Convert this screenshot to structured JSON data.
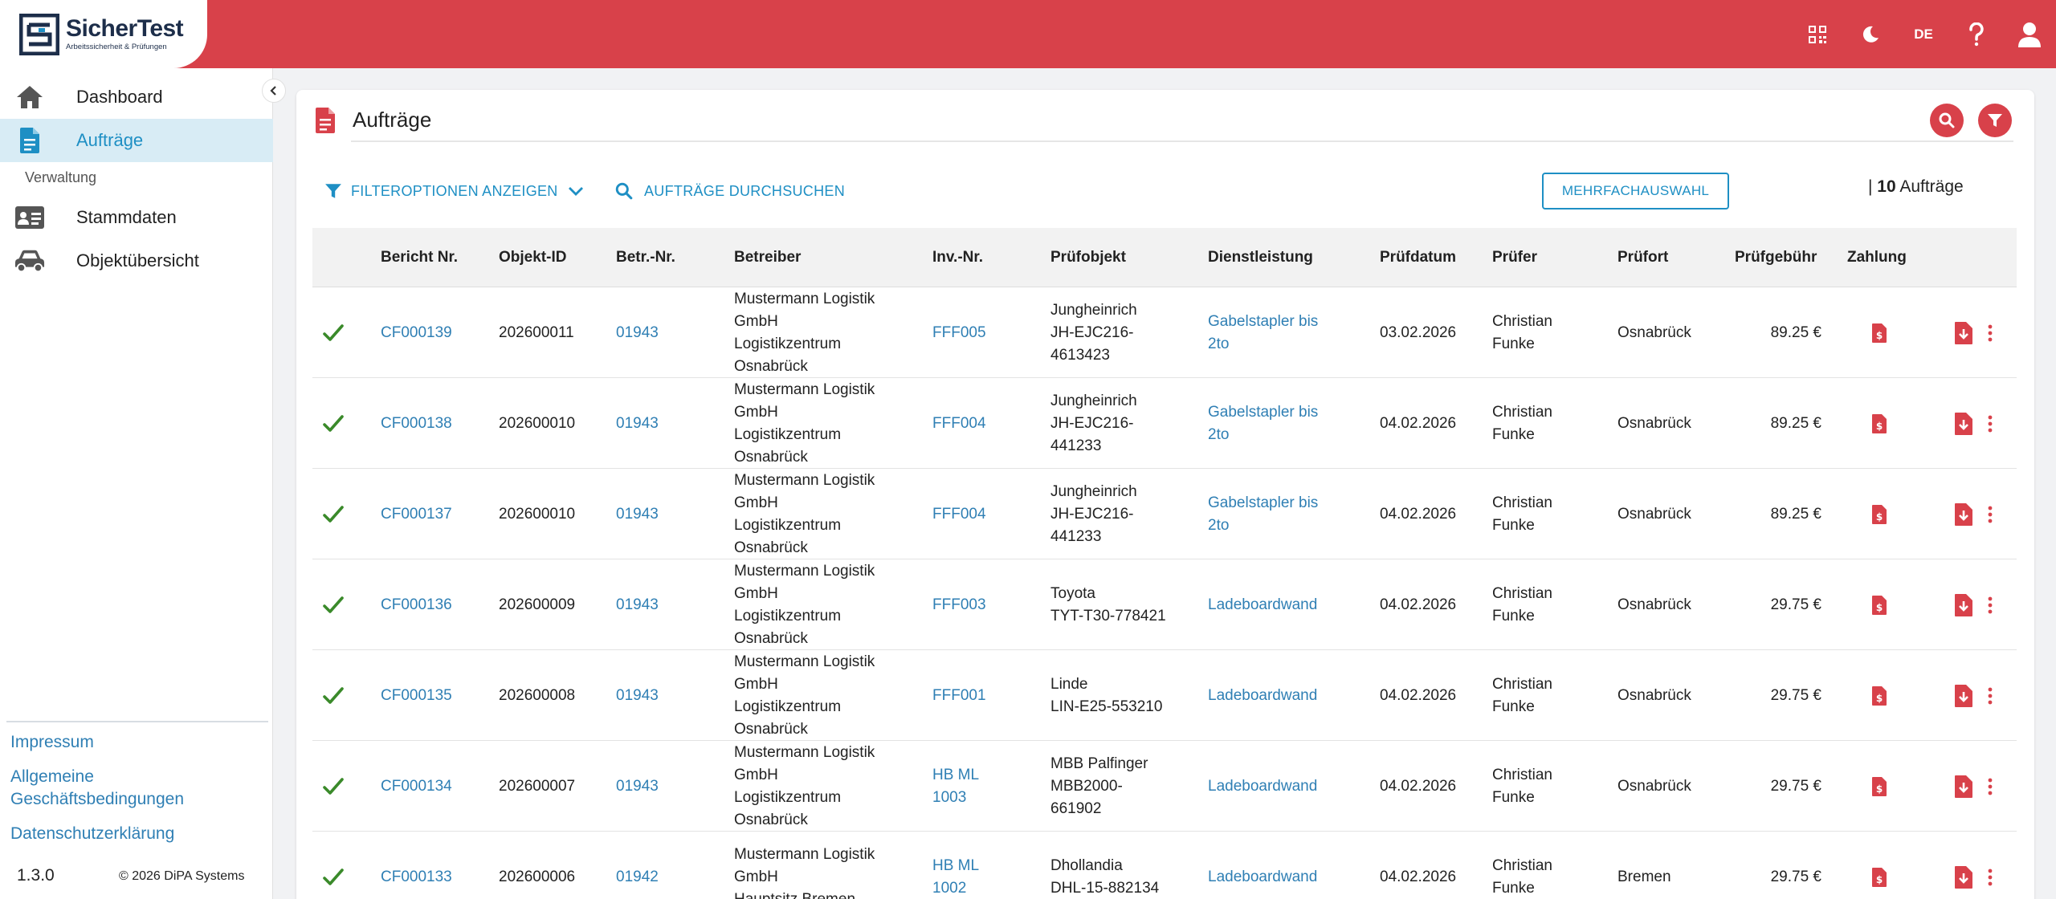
{
  "brand": {
    "name": "SicherTest",
    "tagline": "Arbeitssicherheit & Prüfungen"
  },
  "topbar": {
    "language": "DE",
    "icons": [
      "qr-code-icon",
      "moon-icon",
      "language-icon",
      "help-icon",
      "user-icon"
    ]
  },
  "sidebar": {
    "items": [
      {
        "label": "Dashboard",
        "icon": "home-icon"
      },
      {
        "label": "Aufträge",
        "icon": "document-icon"
      }
    ],
    "section": "Verwaltung",
    "admin_items": [
      {
        "label": "Stammdaten",
        "icon": "id-card-icon"
      },
      {
        "label": "Objektübersicht",
        "icon": "car-icon"
      }
    ],
    "footer_links": [
      "Impressum",
      "Allgemeine Geschäftsbedingungen",
      "Datenschutzerklärung"
    ],
    "version": "1.3.0",
    "copyright": "© 2026  DiPA Systems"
  },
  "page": {
    "title": "Aufträge",
    "filter_toggle": "FILTEROPTIONEN ANZEIGEN",
    "search_toggle": "AUFTRÄGE DURCHSUCHEN",
    "multi_select": "MEHRFACHAUSWAHL",
    "count_prefix": "| ",
    "count_value": "10",
    "count_suffix": " Aufträge"
  },
  "colors": {
    "accent": "#d8414a",
    "link": "#2f7fb4",
    "primary": "#1e8fc4",
    "success": "#3a8a2a"
  },
  "table": {
    "headers": {
      "bericht": "Bericht Nr.",
      "objekt": "Objekt-ID",
      "betr": "Betr.-Nr.",
      "betreiber": "Betreiber",
      "inv": "Inv.-Nr.",
      "pruefobjekt": "Prüfobjekt",
      "dienst": "Dienstleistung",
      "datum": "Prüfdatum",
      "pruefer": "Prüfer",
      "ort": "Prüfort",
      "gebuehr": "Prüfgebühr",
      "zahlung": "Zahlung"
    },
    "rows": [
      {
        "bericht": "CF000139",
        "objekt": "202600011",
        "betr": "01943",
        "betreiber_lines": [
          "Mustermann Logistik",
          "GmbH",
          "Logistikzentrum",
          "Osnabrück"
        ],
        "inv_lines": [
          "FFF005"
        ],
        "obj_lines": [
          "Jungheinrich",
          "JH-EJC216-",
          "4613423"
        ],
        "dienst_lines": [
          "Gabelstapler bis",
          "2to"
        ],
        "datum": "03.02.2026",
        "pruefer_lines": [
          "Christian",
          "Funke"
        ],
        "ort": "Osnabrück",
        "gebuehr": "89.25 €"
      },
      {
        "bericht": "CF000138",
        "objekt": "202600010",
        "betr": "01943",
        "betreiber_lines": [
          "Mustermann Logistik",
          "GmbH",
          "Logistikzentrum",
          "Osnabrück"
        ],
        "inv_lines": [
          "FFF004"
        ],
        "obj_lines": [
          "Jungheinrich",
          "JH-EJC216-",
          "441233"
        ],
        "dienst_lines": [
          "Gabelstapler bis",
          "2to"
        ],
        "datum": "04.02.2026",
        "pruefer_lines": [
          "Christian",
          "Funke"
        ],
        "ort": "Osnabrück",
        "gebuehr": "89.25 €"
      },
      {
        "bericht": "CF000137",
        "objekt": "202600010",
        "betr": "01943",
        "betreiber_lines": [
          "Mustermann Logistik",
          "GmbH",
          "Logistikzentrum",
          "Osnabrück"
        ],
        "inv_lines": [
          "FFF004"
        ],
        "obj_lines": [
          "Jungheinrich",
          "JH-EJC216-",
          "441233"
        ],
        "dienst_lines": [
          "Gabelstapler bis",
          "2to"
        ],
        "datum": "04.02.2026",
        "pruefer_lines": [
          "Christian",
          "Funke"
        ],
        "ort": "Osnabrück",
        "gebuehr": "89.25 €"
      },
      {
        "bericht": "CF000136",
        "objekt": "202600009",
        "betr": "01943",
        "betreiber_lines": [
          "Mustermann Logistik",
          "GmbH",
          "Logistikzentrum",
          "Osnabrück"
        ],
        "inv_lines": [
          "FFF003"
        ],
        "obj_lines": [
          "Toyota",
          "TYT-T30-778421"
        ],
        "dienst_lines": [
          "Ladeboardwand"
        ],
        "datum": "04.02.2026",
        "pruefer_lines": [
          "Christian",
          "Funke"
        ],
        "ort": "Osnabrück",
        "gebuehr": "29.75 €"
      },
      {
        "bericht": "CF000135",
        "objekt": "202600008",
        "betr": "01943",
        "betreiber_lines": [
          "Mustermann Logistik",
          "GmbH",
          "Logistikzentrum",
          "Osnabrück"
        ],
        "inv_lines": [
          "FFF001"
        ],
        "obj_lines": [
          "Linde",
          "LIN-E25-553210"
        ],
        "dienst_lines": [
          "Ladeboardwand"
        ],
        "datum": "04.02.2026",
        "pruefer_lines": [
          "Christian",
          "Funke"
        ],
        "ort": "Osnabrück",
        "gebuehr": "29.75 €"
      },
      {
        "bericht": "CF000134",
        "objekt": "202600007",
        "betr": "01943",
        "betreiber_lines": [
          "Mustermann Logistik",
          "GmbH",
          "Logistikzentrum",
          "Osnabrück"
        ],
        "inv_lines": [
          "HB ML",
          "1003"
        ],
        "obj_lines": [
          "MBB Palfinger",
          "MBB2000-",
          "661902"
        ],
        "dienst_lines": [
          "Ladeboardwand"
        ],
        "datum": "04.02.2026",
        "pruefer_lines": [
          "Christian",
          "Funke"
        ],
        "ort": "Osnabrück",
        "gebuehr": "29.75 €"
      },
      {
        "bericht": "CF000133",
        "objekt": "202600006",
        "betr": "01942",
        "betreiber_lines": [
          "Mustermann Logistik",
          "GmbH",
          "Hauptsitz Bremen"
        ],
        "inv_lines": [
          "HB ML",
          "1002"
        ],
        "obj_lines": [
          "Dhollandia",
          "DHL-15-882134"
        ],
        "dienst_lines": [
          "Ladeboardwand"
        ],
        "datum": "04.02.2026",
        "pruefer_lines": [
          "Christian",
          "Funke"
        ],
        "ort": "Bremen",
        "gebuehr": "29.75 €"
      }
    ]
  }
}
